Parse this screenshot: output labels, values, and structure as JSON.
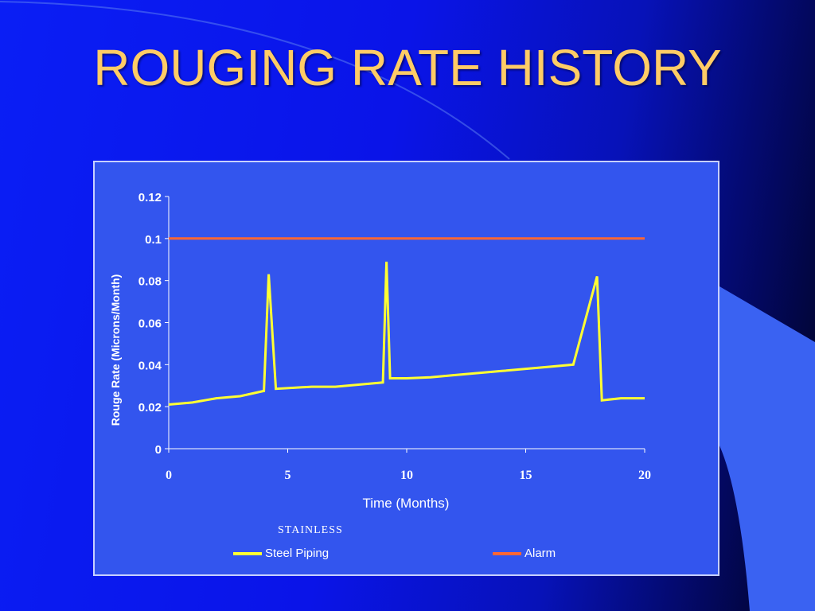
{
  "slide": {
    "title": "ROUGING RATE HISTORY"
  },
  "colors": {
    "accent_title": "#ffcc66",
    "panel": "#3355ee",
    "series_steel": "#ffff33",
    "series_alarm": "#ff6633"
  },
  "chart_data": {
    "type": "line",
    "xlabel": "Time (Months)",
    "ylabel": "Rouge Rate (Microns/Month)",
    "xlim": [
      0,
      20
    ],
    "ylim": [
      0,
      0.12
    ],
    "xticks": [
      "0",
      "5",
      "10",
      "15",
      "20"
    ],
    "yticks": [
      "0",
      "0.02",
      "0.04",
      "0.06",
      "0.08",
      "0.1",
      "0.12"
    ],
    "grid": false,
    "legend_position": "bottom",
    "legend_prefix": "STAINLESS",
    "series": [
      {
        "name": "Steel Piping",
        "color": "#ffff33",
        "x": [
          0,
          1,
          2,
          3,
          4,
          4.2,
          4.5,
          6,
          7,
          9,
          9.15,
          9.3,
          10,
          11,
          12,
          14,
          16,
          17,
          18,
          18.2,
          19,
          20
        ],
        "y": [
          0.021,
          0.022,
          0.024,
          0.025,
          0.0275,
          0.083,
          0.0285,
          0.0295,
          0.0295,
          0.0315,
          0.089,
          0.0335,
          0.0335,
          0.034,
          0.035,
          0.037,
          0.039,
          0.04,
          0.082,
          0.023,
          0.024,
          0.024
        ]
      },
      {
        "name": "Alarm",
        "color": "#ff6633",
        "x": [
          0,
          20
        ],
        "y": [
          0.1,
          0.1
        ]
      }
    ]
  }
}
